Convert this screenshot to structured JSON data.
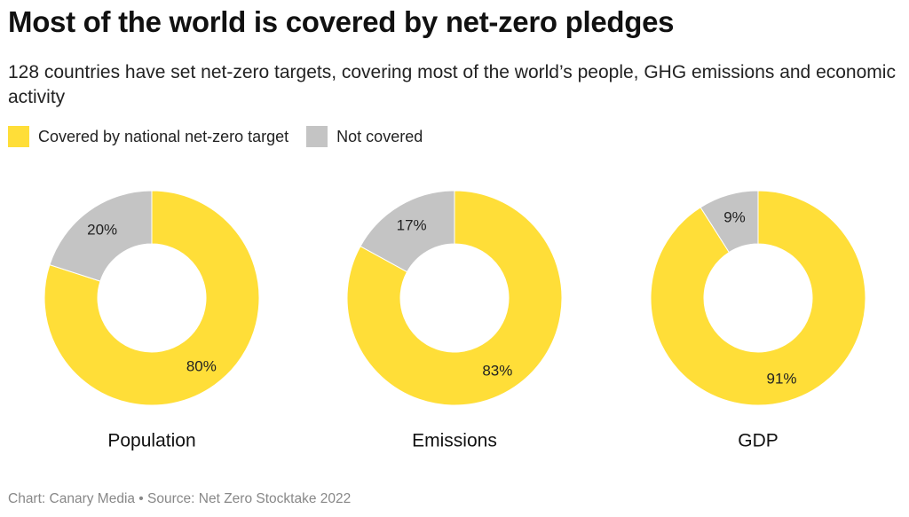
{
  "title": "Most of the world is covered by net-zero pledges",
  "subtitle": "128 countries have set net-zero targets, covering most of the world’s people, GHG emissions and economic activity",
  "legend": [
    {
      "label": "Covered by national net-zero target",
      "color": "#FFDE38"
    },
    {
      "label": "Not covered",
      "color": "#C4C4C4"
    }
  ],
  "footer": "Chart: Canary Media • Source: Net Zero Stocktake 2022",
  "chart_data": [
    {
      "type": "pie",
      "title": "Population",
      "slices": [
        {
          "label": "Covered by national net-zero target",
          "value": 80,
          "text": "80%",
          "color": "#FFDE38"
        },
        {
          "label": "Not covered",
          "value": 20,
          "text": "20%",
          "color": "#C4C4C4"
        }
      ]
    },
    {
      "type": "pie",
      "title": "Emissions",
      "slices": [
        {
          "label": "Covered by national net-zero target",
          "value": 83,
          "text": "83%",
          "color": "#FFDE38"
        },
        {
          "label": "Not covered",
          "value": 17,
          "text": "17%",
          "color": "#C4C4C4"
        }
      ]
    },
    {
      "type": "pie",
      "title": "GDP",
      "slices": [
        {
          "label": "Covered by national net-zero target",
          "value": 91,
          "text": "91%",
          "color": "#FFDE38"
        },
        {
          "label": "Not covered",
          "value": 9,
          "text": "9%",
          "color": "#C4C4C4"
        }
      ]
    }
  ]
}
